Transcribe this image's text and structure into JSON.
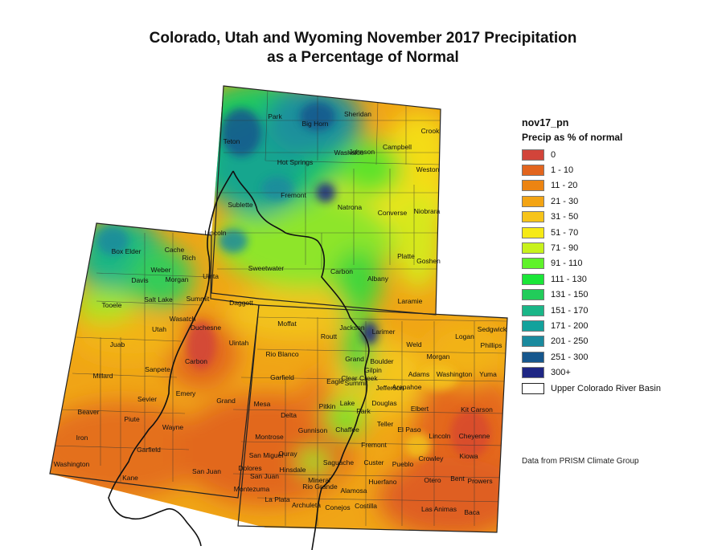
{
  "title": {
    "line1": "Colorado, Utah and Wyoming November 2017 Precipitation",
    "line2": "as a Percentage of Normal"
  },
  "legend": {
    "name": "nov17_pn",
    "subtitle": "Precip as % of normal",
    "classes": [
      {
        "label": "0",
        "color": "#d2443a"
      },
      {
        "label": "1 - 10",
        "color": "#e2651e"
      },
      {
        "label": "11 - 20",
        "color": "#ec8412"
      },
      {
        "label": "21 - 30",
        "color": "#f3a414"
      },
      {
        "label": "31 - 50",
        "color": "#f6c41a"
      },
      {
        "label": "51 - 70",
        "color": "#f6ea16"
      },
      {
        "label": "71 - 90",
        "color": "#c8f21c"
      },
      {
        "label": "91 - 110",
        "color": "#5ff22a"
      },
      {
        "label": "111 - 130",
        "color": "#1ae638"
      },
      {
        "label": "131 - 150",
        "color": "#22cc5a"
      },
      {
        "label": "151 - 170",
        "color": "#1ab688"
      },
      {
        "label": "171 - 200",
        "color": "#13a29c"
      },
      {
        "label": "201 - 250",
        "color": "#1a8a9e"
      },
      {
        "label": "251 - 300",
        "color": "#16578d"
      },
      {
        "label": "300+",
        "color": "#1e2684"
      }
    ],
    "basin_label": "Upper Colorado River Basin"
  },
  "credit": "Data from PRISM Climate Group",
  "counties": {
    "wyoming": [
      "Park",
      "Big Horn",
      "Sheridan",
      "Crook",
      "Teton",
      "Washakie",
      "Johnson",
      "Campbell",
      "Hot Springs",
      "Weston",
      "Fremont",
      "Sublette",
      "Natrona",
      "Converse",
      "Niobrara",
      "Lincoln",
      "Sweetwater",
      "Carbon",
      "Albany",
      "Platte",
      "Goshen",
      "Uinta",
      "Laramie"
    ],
    "utah": [
      "Box Elder",
      "Cache",
      "Rich",
      "Weber",
      "Davis",
      "Morgan",
      "Salt Lake",
      "Summit",
      "Daggett",
      "Tooele",
      "Wasatch",
      "Utah",
      "Duchesne",
      "Uintah",
      "Juab",
      "Carbon",
      "Sanpete",
      "Millard",
      "Emery",
      "Grand",
      "Sevier",
      "Beaver",
      "Piute",
      "Wayne",
      "Iron",
      "Garfield",
      "Washington",
      "Kane",
      "San Juan"
    ],
    "colorado": [
      "Moffat",
      "Jackson",
      "Larimer",
      "Logan",
      "Sedgwick",
      "Phillips",
      "Routt",
      "Weld",
      "Rio Blanco",
      "Grand",
      "Boulder",
      "Morgan",
      "Gilpin",
      "Clear Creek",
      "Adams",
      "Washington",
      "Yuma",
      "Garfield",
      "Eagle",
      "Summit",
      "Jefferson",
      "Arapahoe",
      "Mesa",
      "Pitkin",
      "Lake",
      "Douglas",
      "Elbert",
      "Kit Carson",
      "Delta",
      "Park",
      "Teller",
      "El Paso",
      "Lincoln",
      "Cheyenne",
      "Gunnison",
      "Chaffee",
      "Fremont",
      "Montrose",
      "Ouray",
      "Kiowa",
      "San Miguel",
      "Custer",
      "Pueblo",
      "Crowley",
      "Dolores",
      "Hinsdale",
      "Saguache",
      "San Juan",
      "Mineral",
      "Otero",
      "Bent",
      "Prowers",
      "Montezuma",
      "Rio Grande",
      "Alamosa",
      "Huerfano",
      "La Plata",
      "Archuleta",
      "Conejos",
      "Costilla",
      "Las Animas",
      "Baca"
    ]
  }
}
